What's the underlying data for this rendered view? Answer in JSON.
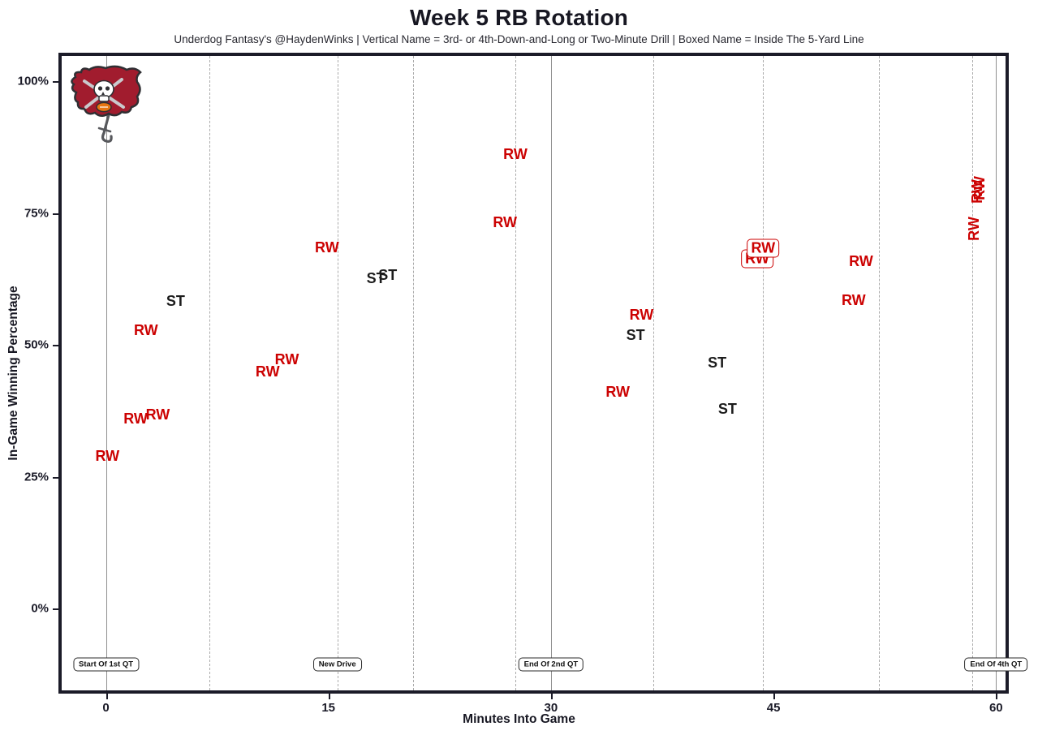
{
  "header": {
    "title": "Week 5 RB Rotation",
    "subtitle": "Underdog Fantasy's @HaydenWinks | Vertical Name = 3rd- or 4th-Down-and-Long or Two-Minute Drill | Boxed Name = Inside The 5-Yard Line"
  },
  "logo": {
    "name": "tampa-bay-buccaneers-flag-logo"
  },
  "colors": {
    "rw_red": "#cc0202",
    "st_black": "#1c1c1c",
    "panel_border": "#1b1b28",
    "event_line_solid": "#8f8f8f",
    "event_line_dashed": "#ababab"
  },
  "chart_data": {
    "type": "scatter",
    "title": "Week 5 RB Rotation",
    "xlabel": "Minutes Into Game",
    "ylabel": "In-Game Winning Percentage",
    "xlim": [
      -3.2,
      61.5
    ],
    "ylim": [
      -16,
      105
    ],
    "x_ticks": [
      0,
      15,
      30,
      45,
      60
    ],
    "y_ticks": [
      0,
      25,
      50,
      75,
      100
    ],
    "y_tick_suffix": "%",
    "grid": "vertical event lines only",
    "legend_position": "none",
    "points": [
      {
        "x": 0.1,
        "y": 29.0,
        "label": "RW",
        "color": "red",
        "style": "normal"
      },
      {
        "x": 2.0,
        "y": 36.0,
        "label": "RW",
        "color": "red",
        "style": "normal"
      },
      {
        "x": 3.5,
        "y": 36.7,
        "label": "RW",
        "color": "red",
        "style": "normal"
      },
      {
        "x": 2.7,
        "y": 52.7,
        "label": "RW",
        "color": "red",
        "style": "normal"
      },
      {
        "x": 4.7,
        "y": 58.3,
        "label": "ST",
        "color": "black",
        "style": "normal"
      },
      {
        "x": 10.9,
        "y": 45.0,
        "label": "RW",
        "color": "red",
        "style": "normal"
      },
      {
        "x": 12.2,
        "y": 47.3,
        "label": "RW",
        "color": "red",
        "style": "normal"
      },
      {
        "x": 14.9,
        "y": 68.5,
        "label": "RW",
        "color": "red",
        "style": "normal"
      },
      {
        "x": 18.2,
        "y": 62.6,
        "label": "ST",
        "color": "black",
        "style": "normal"
      },
      {
        "x": 19.0,
        "y": 63.2,
        "label": "ST",
        "color": "black",
        "style": "normal"
      },
      {
        "x": 26.9,
        "y": 73.3,
        "label": "RW",
        "color": "red",
        "style": "normal"
      },
      {
        "x": 27.6,
        "y": 86.2,
        "label": "RW",
        "color": "red",
        "style": "normal"
      },
      {
        "x": 34.5,
        "y": 41.1,
        "label": "RW",
        "color": "red",
        "style": "normal"
      },
      {
        "x": 35.7,
        "y": 51.8,
        "label": "ST",
        "color": "black",
        "style": "normal"
      },
      {
        "x": 36.1,
        "y": 55.7,
        "label": "RW",
        "color": "red",
        "style": "normal"
      },
      {
        "x": 41.2,
        "y": 46.6,
        "label": "ST",
        "color": "black",
        "style": "normal"
      },
      {
        "x": 41.9,
        "y": 37.8,
        "label": "ST",
        "color": "black",
        "style": "normal"
      },
      {
        "x": 43.9,
        "y": 66.3,
        "label": "RW",
        "color": "red",
        "style": "boxed"
      },
      {
        "x": 44.3,
        "y": 68.3,
        "label": "RW",
        "color": "red",
        "style": "boxed"
      },
      {
        "x": 50.4,
        "y": 58.4,
        "label": "RW",
        "color": "red",
        "style": "normal"
      },
      {
        "x": 50.9,
        "y": 65.9,
        "label": "RW",
        "color": "red",
        "style": "normal"
      },
      {
        "x": 58.5,
        "y": 72.0,
        "label": "RW",
        "color": "red",
        "style": "vertical"
      },
      {
        "x": 58.7,
        "y": 79.1,
        "label": "RW",
        "color": "red",
        "style": "vertical"
      },
      {
        "x": 58.9,
        "y": 79.7,
        "label": "RW",
        "color": "red",
        "style": "vertical"
      }
    ],
    "event_lines": [
      {
        "x": 0,
        "line": "solid",
        "label": "Start Of 1st QT"
      },
      {
        "x": 7.0,
        "line": "dashed",
        "label": ""
      },
      {
        "x": 15.6,
        "line": "dashed",
        "label": "New Drive"
      },
      {
        "x": 20.7,
        "line": "dashed",
        "label": ""
      },
      {
        "x": 27.6,
        "line": "dashed",
        "label": ""
      },
      {
        "x": 30,
        "line": "solid",
        "label": "End Of 2nd QT"
      },
      {
        "x": 36.9,
        "line": "dashed",
        "label": ""
      },
      {
        "x": 44.3,
        "line": "dashed",
        "label": ""
      },
      {
        "x": 52.1,
        "line": "dashed",
        "label": ""
      },
      {
        "x": 58.4,
        "line": "dashed",
        "label": ""
      },
      {
        "x": 60,
        "line": "solid",
        "label": "End Of 4th QT"
      }
    ]
  }
}
